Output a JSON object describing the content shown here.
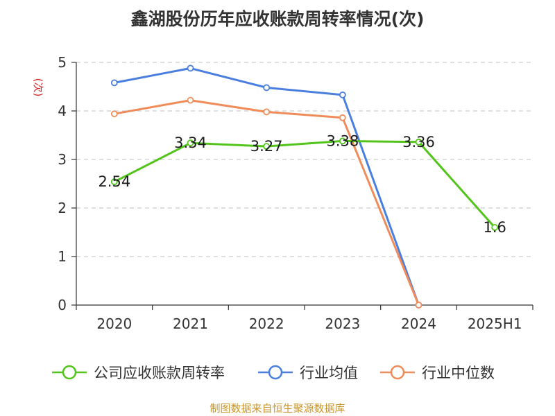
{
  "chart_data": {
    "type": "line",
    "title": "鑫湖股份历年应收账款周转率情况(次)",
    "ylabel": "(次)",
    "xlabel": "",
    "categories": [
      "2020",
      "2021",
      "2022",
      "2023",
      "2024",
      "2025H1"
    ],
    "ylim": [
      0,
      5
    ],
    "yticks": [
      "0",
      "1",
      "2",
      "3",
      "4",
      "5"
    ],
    "grid": true,
    "legend_position": "bottom",
    "series": [
      {
        "name": "公司应收账款周转率",
        "color": "#52c41a",
        "values": [
          2.54,
          3.34,
          3.27,
          3.38,
          3.36,
          1.6
        ],
        "labels": [
          "2.54",
          "3.34",
          "3.27",
          "3.38",
          "3.36",
          "1.6"
        ]
      },
      {
        "name": "行业均值",
        "color": "#4a7fe0",
        "values": [
          4.58,
          4.88,
          4.48,
          4.33,
          0,
          null
        ]
      },
      {
        "name": "行业中位数",
        "color": "#f08c5a",
        "values": [
          3.94,
          4.22,
          3.98,
          3.86,
          0,
          null
        ]
      }
    ]
  },
  "source": "制图数据来自恒生聚源数据库"
}
